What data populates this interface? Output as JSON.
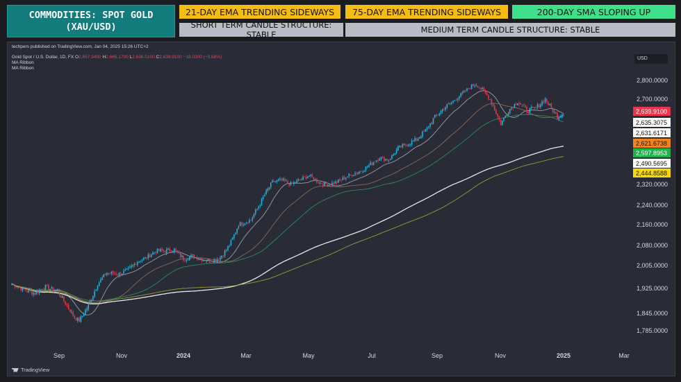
{
  "header": {
    "title_line1": "COMMODITIES: SPOT GOLD",
    "title_line2": "(XAU/USD)",
    "badges": [
      {
        "label": "21-DAY EMA TRENDING SIDEWAYS",
        "color": "#f5bd12"
      },
      {
        "label": "75-DAY EMA TRENDING SIDEWAYS",
        "color": "#f5bd12"
      },
      {
        "label": "200-DAY SMA SLOPING UP",
        "color": "#3ee08c"
      },
      {
        "label": "SHORT TERM CANDLE STRUCTURE: STABLE",
        "color": "#b9bcc6"
      },
      {
        "label": "MEDIUM TERM CANDLE STRUCTURE: STABLE",
        "color": "#b9bcc6"
      }
    ]
  },
  "chart_meta": {
    "published": "techpers published on TradingView.com, Jan 04, 2025 15:26 UTC+2",
    "symbol": "Gold Spot / U.S. Dollar, 1D, FX",
    "o_label": "O",
    "o": "2,657.9400",
    "h_label": "H",
    "h": "2,665.1700",
    "l_label": "L",
    "l": "2,636.5100",
    "c_label": "C",
    "c": "2,639.9100",
    "change": "−18.0300 (−0.68%)",
    "indicator1": "MA Ribbon",
    "indicator2": "MA Ribbon",
    "currency": "USD",
    "brand": "TradingView"
  },
  "chart_data": {
    "type": "candlestick",
    "title": "Gold Spot / U.S. Dollar, 1D, FX",
    "y_ticks": [
      2800,
      2700,
      2320,
      2240,
      2160,
      2080,
      2005,
      1925,
      1845,
      1785
    ],
    "y_tick_labels": [
      "2,800.0000",
      "2,700.0000",
      "2,320.0000",
      "2,240.0000",
      "2,160.0000",
      "2,080.0000",
      "2,005.0000",
      "1,925.0000",
      "1,845.0000",
      "1,785.0000"
    ],
    "x_ticks": [
      "Sep",
      "Nov",
      "2024",
      "Mar",
      "May",
      "Jul",
      "Sep",
      "Nov",
      "2025",
      "Mar"
    ],
    "x_tick_bold": [
      "2024",
      "2025"
    ],
    "price_tags": [
      {
        "label": "2,639.9100",
        "value": 2639.91,
        "bg": "#e8364d",
        "fg": "#ffffff"
      },
      {
        "label": "2,635.3075",
        "value": 2635.31,
        "bg": "#ffffff",
        "fg": "#111111"
      },
      {
        "label": "2,631.6171",
        "value": 2631.62,
        "bg": "#ffffff",
        "fg": "#111111"
      },
      {
        "label": "2,621.6738",
        "value": 2621.67,
        "bg": "#f0851f",
        "fg": "#111111"
      },
      {
        "label": "2,597.8953",
        "value": 2597.9,
        "bg": "#22b14c",
        "fg": "#ffffff"
      },
      {
        "label": "2,490.5695",
        "value": 2490.57,
        "bg": "#ffffff",
        "fg": "#111111"
      },
      {
        "label": "2,444.8588",
        "value": 2444.86,
        "bg": "#f5d90a",
        "fg": "#111111"
      }
    ],
    "candle_colors": {
      "up": "#26b5e0",
      "down": "#e8364d"
    },
    "ma_lines": [
      {
        "key": "ma21",
        "color": "#9aa0aa",
        "value": 2635.31
      },
      {
        "key": "ma50",
        "color": "#8b6a55",
        "value": 2621.67
      },
      {
        "key": "ma75",
        "color": "#2e8a5e",
        "value": 2597.9
      },
      {
        "key": "ma200",
        "color": "#e8e8e8",
        "value": 2490.57
      },
      {
        "key": "ma250",
        "color": "#9a9a3a",
        "value": 2444.86
      }
    ],
    "anchors": [
      [
        0,
        1940
      ],
      [
        8,
        1920
      ],
      [
        15,
        1910
      ],
      [
        22,
        1930
      ],
      [
        30,
        1915
      ],
      [
        36,
        1870
      ],
      [
        41,
        1830
      ],
      [
        44,
        1820
      ],
      [
        50,
        1870
      ],
      [
        56,
        1940
      ],
      [
        62,
        1980
      ],
      [
        70,
        1975
      ],
      [
        76,
        1990
      ],
      [
        82,
        2020
      ],
      [
        88,
        2035
      ],
      [
        94,
        2060
      ],
      [
        100,
        2060
      ],
      [
        106,
        2065
      ],
      [
        112,
        2030
      ],
      [
        118,
        2040
      ],
      [
        124,
        2030
      ],
      [
        130,
        2020
      ],
      [
        136,
        2035
      ],
      [
        142,
        2080
      ],
      [
        148,
        2160
      ],
      [
        156,
        2180
      ],
      [
        164,
        2270
      ],
      [
        170,
        2330
      ],
      [
        176,
        2340
      ],
      [
        182,
        2320
      ],
      [
        188,
        2340
      ],
      [
        194,
        2360
      ],
      [
        200,
        2330
      ],
      [
        206,
        2320
      ],
      [
        212,
        2330
      ],
      [
        220,
        2360
      ],
      [
        228,
        2380
      ],
      [
        234,
        2410
      ],
      [
        240,
        2440
      ],
      [
        246,
        2430
      ],
      [
        252,
        2480
      ],
      [
        258,
        2500
      ],
      [
        264,
        2520
      ],
      [
        270,
        2560
      ],
      [
        276,
        2620
      ],
      [
        282,
        2660
      ],
      [
        288,
        2690
      ],
      [
        294,
        2730
      ],
      [
        300,
        2770
      ],
      [
        303,
        2780
      ],
      [
        308,
        2740
      ],
      [
        312,
        2700
      ],
      [
        316,
        2640
      ],
      [
        319,
        2590
      ],
      [
        324,
        2650
      ],
      [
        330,
        2690
      ],
      [
        336,
        2650
      ],
      [
        342,
        2660
      ],
      [
        348,
        2700
      ],
      [
        352,
        2660
      ],
      [
        356,
        2620
      ],
      [
        360,
        2640
      ]
    ]
  }
}
